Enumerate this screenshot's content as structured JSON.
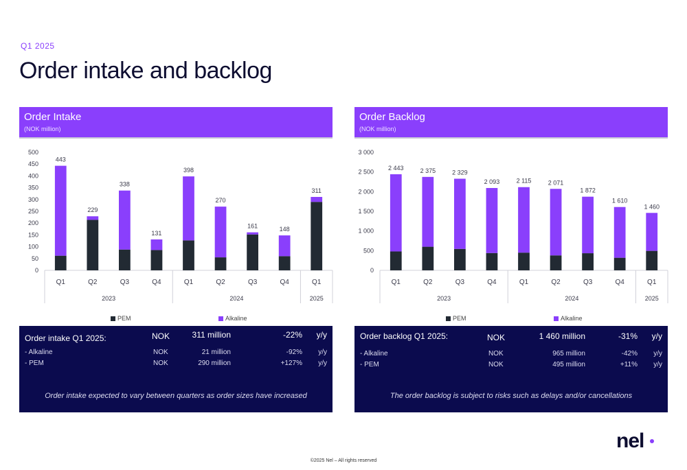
{
  "page": {
    "kicker": "Q1 2025",
    "title": "Order intake and backlog",
    "footer": "©2025 Nel – All rights reserved",
    "logo": "nel"
  },
  "colors": {
    "pem": "#222a33",
    "alkaline": "#8a3ffc",
    "header_bg": "#8a3ffc",
    "box_bg": "#0b0b4e"
  },
  "chart_data": [
    {
      "type": "bar",
      "stacked": true,
      "title": "Order Intake",
      "subtitle": "(NOK million)",
      "categories": [
        "Q1",
        "Q2",
        "Q3",
        "Q4",
        "Q1",
        "Q2",
        "Q3",
        "Q4",
        "Q1"
      ],
      "groups": [
        {
          "label": "2023",
          "start": 0,
          "end": 3
        },
        {
          "label": "2024",
          "start": 4,
          "end": 7
        },
        {
          "label": "2025",
          "start": 8,
          "end": 8
        }
      ],
      "series": [
        {
          "name": "PEM",
          "values": [
            62,
            214,
            88,
            86,
            127,
            55,
            152,
            60,
            290
          ]
        },
        {
          "name": "Alkaline",
          "values": [
            381,
            15,
            250,
            45,
            271,
            215,
            9,
            88,
            21
          ]
        }
      ],
      "totals": [
        "443",
        "229",
        "338",
        "131",
        "398",
        "270",
        "161",
        "148",
        "311"
      ],
      "yticks": [
        0,
        50,
        100,
        150,
        200,
        250,
        300,
        350,
        400,
        450,
        500
      ],
      "ytick_labels": [
        "0",
        "50",
        "100",
        "150",
        "200",
        "250",
        "300",
        "350",
        "400",
        "450",
        "500"
      ],
      "ylim": [
        0,
        500
      ],
      "legend": "bottom",
      "grid": false
    },
    {
      "type": "bar",
      "stacked": true,
      "title": "Order Backlog",
      "subtitle": "(NOK million)",
      "categories": [
        "Q1",
        "Q2",
        "Q3",
        "Q4",
        "Q1",
        "Q2",
        "Q3",
        "Q4",
        "Q1"
      ],
      "groups": [
        {
          "label": "2023",
          "start": 0,
          "end": 3
        },
        {
          "label": "2024",
          "start": 4,
          "end": 7
        },
        {
          "label": "2025",
          "start": 8,
          "end": 8
        }
      ],
      "series": [
        {
          "name": "PEM",
          "values": [
            480,
            600,
            545,
            440,
            450,
            380,
            435,
            320,
            495
          ]
        },
        {
          "name": "Alkaline",
          "values": [
            1963,
            1775,
            1784,
            1653,
            1665,
            1691,
            1437,
            1290,
            965
          ]
        }
      ],
      "totals": [
        "2 443",
        "2 375",
        "2 329",
        "2 093",
        "2 115",
        "2 071",
        "1 872",
        "1 610",
        "1 460"
      ],
      "yticks": [
        0,
        500,
        1000,
        1500,
        2000,
        2500,
        3000
      ],
      "ytick_labels": [
        "0",
        "500",
        "1 000",
        "1 500",
        "2 000",
        "2 500",
        "3 000"
      ],
      "ylim": [
        0,
        3000
      ],
      "legend": "bottom",
      "grid": false
    }
  ],
  "intake_box": {
    "title": "Order intake Q1 2025:",
    "currency": "NOK",
    "amount": "311 million",
    "change": "-22%",
    "yy": "y/y",
    "rows": [
      {
        "label": "- Alkaline",
        "currency": "NOK",
        "amount": "21 million",
        "change": "-92%",
        "yy": "y/y"
      },
      {
        "label": "- PEM",
        "currency": "NOK",
        "amount": "290 million",
        "change": "+127%",
        "yy": "y/y"
      }
    ],
    "note": "Order intake expected to vary between quarters as order sizes have increased"
  },
  "backlog_box": {
    "title": "Order backlog Q1 2025:",
    "currency": "NOK",
    "amount": "1 460 million",
    "change": "-31%",
    "yy": "y/y",
    "rows": [
      {
        "label": "- Alkaline",
        "currency": "NOK",
        "amount": "965 million",
        "change": "-42%",
        "yy": "y/y"
      },
      {
        "label": "- PEM",
        "currency": "NOK",
        "amount": "495 million",
        "change": "+11%",
        "yy": "y/y"
      }
    ],
    "note": "The order backlog is subject to risks such as delays and/or cancellations"
  }
}
